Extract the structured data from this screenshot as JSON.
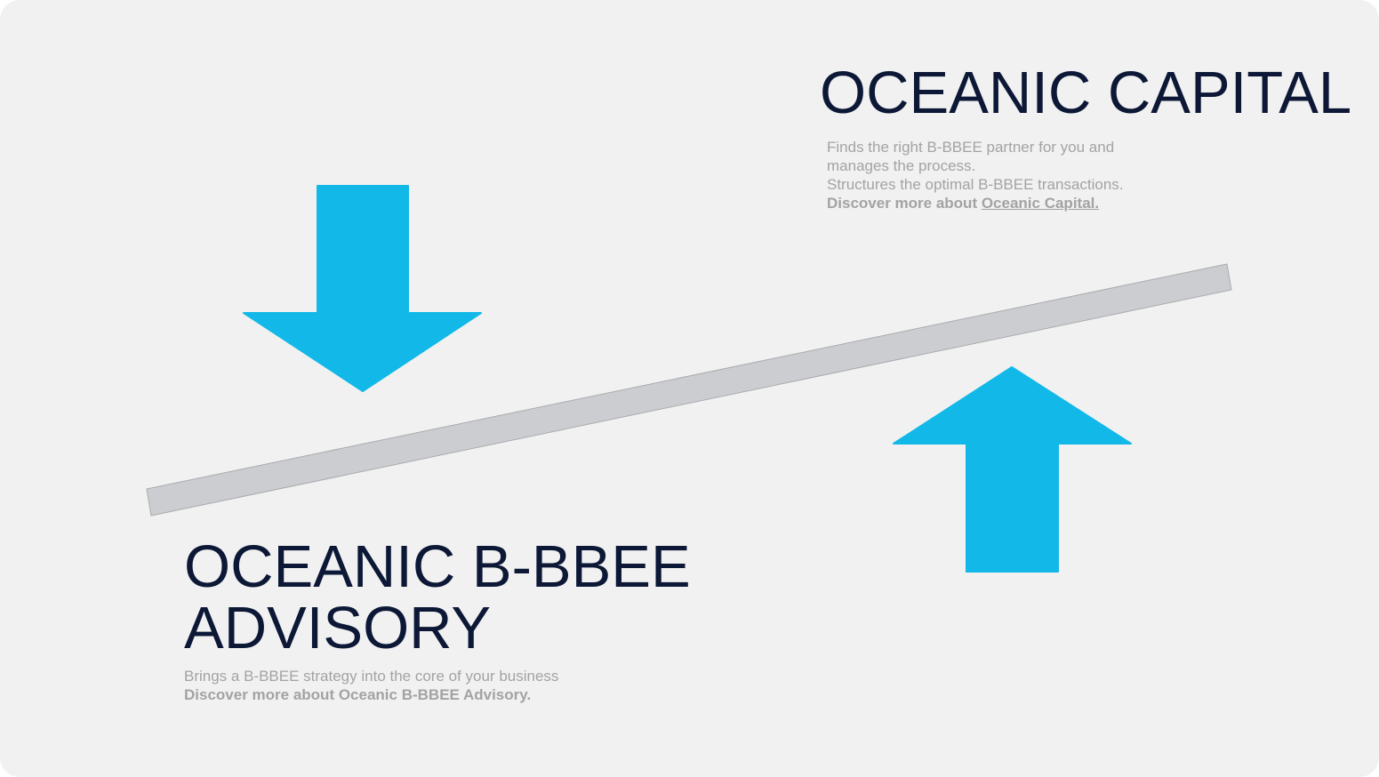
{
  "colors": {
    "background": "#f1f1f1",
    "accent_arrow": "#12b9e8",
    "lever": "#cbcdd0",
    "title": "#0c1836",
    "muted_text": "#a3a3a3"
  },
  "icons": {
    "down_arrow": "down-arrow-icon",
    "up_arrow": "up-arrow-icon"
  },
  "capital": {
    "title": "OCEANIC CAPITAL",
    "lines": [
      "Finds the right B-BBEE partner for you and",
      "manages the process.",
      "Structures the optimal B-BBEE transactions."
    ],
    "cta_prefix": "Discover more about ",
    "cta_link": "Oceanic Capital."
  },
  "advisory": {
    "title_line1": "OCEANIC B-BBEE",
    "title_line2": "ADVISORY",
    "lines": [
      "Brings a B-BBEE strategy into the core of your business"
    ],
    "cta": "Discover more about Oceanic B-BBEE Advisory."
  }
}
